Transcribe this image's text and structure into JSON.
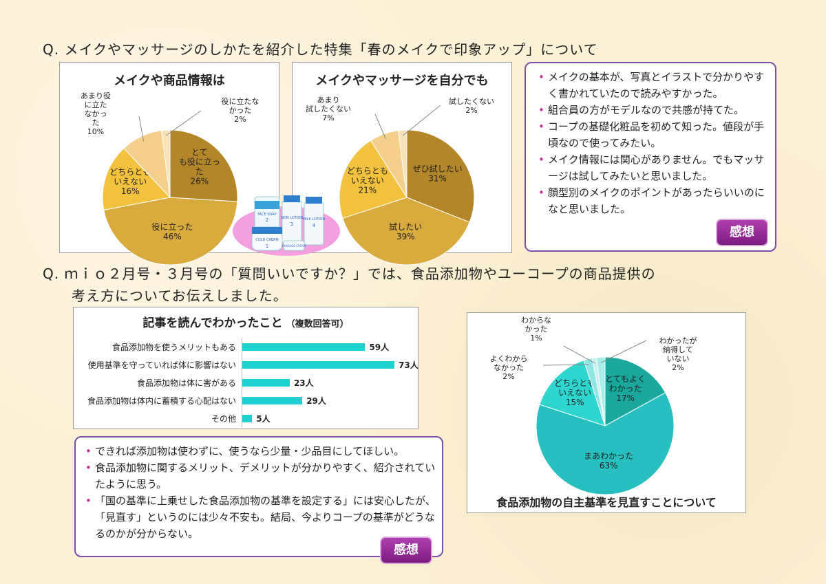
{
  "section1": {
    "question": "Q. メイクやマッサージのしかたを紹介した特集「春のメイクで印象アップ」について"
  },
  "section2": {
    "question_line1": "Q. ｍｉｏ２月号・３月号の「質問いいですか？」では、食品添加物やユーコープの商品提供の",
    "question_line2": "考え方についてお伝えしました。"
  },
  "comments1": {
    "items": [
      "メイクの基本が、写真とイラストで分かりやすく書かれていたので読みやすかった。",
      "組合員の方がモデルなので共感が持てた。",
      "コープの基礎化粧品を初めて知った。値段が手頃なので使ってみたい。",
      "メイク情報には関心がありません。でもマッサージは試してみたいと思いました。",
      "顔型別のメイクのポイントがあったらいいのになと思いました。"
    ],
    "badge": "感想"
  },
  "comments2": {
    "items": [
      "できれば添加物は使わずに、使うなら少量・少品目にしてほしい。",
      "食品添加物に関するメリット、デメリットが分かりやすく、紹介されていたように思う。",
      "「国の基準に上乗せした食品添加物の基準を設定する」には安心したが、「見直す」というのには少々不安も。結局、今よりコープの基準がどうなるのかが分からない。"
    ],
    "badge": "感想"
  },
  "product_image": {
    "labels": [
      "FACE SOAP",
      "SKIN LOTION",
      "COLD CREAM",
      "MILK LOTION",
      "MASSAGE CREAM"
    ],
    "numbers": [
      "2",
      "3",
      "1",
      "4"
    ]
  },
  "chart_data": [
    {
      "type": "pie",
      "title": "メイクや商品情報は",
      "slices": [
        {
          "label": "とても役に立った",
          "value": 26,
          "pct": "26%",
          "color": "#b3862a"
        },
        {
          "label": "役に立った",
          "value": 46,
          "pct": "46%",
          "color": "#d9aa3e"
        },
        {
          "label": "どちらともいえない",
          "value": 16,
          "pct": "16%",
          "color": "#f2c23e"
        },
        {
          "label": "あまり役に立たなかった",
          "value": 10,
          "pct": "10%",
          "color": "#f5d08c"
        },
        {
          "label": "役に立たなかった",
          "value": 2,
          "pct": "2%",
          "color": "#f8e2b8"
        }
      ]
    },
    {
      "type": "pie",
      "title": "メイクやマッサージを自分でも",
      "slices": [
        {
          "label": "ぜひ試したい",
          "value": 31,
          "pct": "31%",
          "color": "#b3862a"
        },
        {
          "label": "試したい",
          "value": 39,
          "pct": "39%",
          "color": "#d9aa3e"
        },
        {
          "label": "どちらともいえない",
          "value": 21,
          "pct": "21%",
          "color": "#f2c23e"
        },
        {
          "label": "あまり試したくない",
          "value": 7,
          "pct": "7%",
          "color": "#f5d08c"
        },
        {
          "label": "試したくない",
          "value": 2,
          "pct": "2%",
          "color": "#f8e2b8"
        }
      ]
    },
    {
      "type": "bar",
      "title": "記事を読んでわかったこと",
      "subtitle": "（複数回答可）",
      "categories": [
        "食品添加物を使うメリットもある",
        "使用基準を守っていれば体に影響はない",
        "食品添加物は体に害がある",
        "食品添加物は体内に蓄積する心配はない",
        "その他"
      ],
      "values": [
        59,
        73,
        23,
        29,
        5
      ],
      "value_labels": [
        "59人",
        "73人",
        "23人",
        "29人",
        "5人"
      ],
      "xlim": [
        0,
        73
      ],
      "color": "#1fd0d0"
    },
    {
      "type": "pie",
      "title": "食品添加物の自主基準を見直すことについて",
      "slices": [
        {
          "label": "とてもよくわかった",
          "value": 17,
          "pct": "17%",
          "color": "#1aa89c"
        },
        {
          "label": "まあわかった",
          "value": 63,
          "pct": "63%",
          "color": "#27bfbf"
        },
        {
          "label": "どちらともいえない",
          "value": 15,
          "pct": "15%",
          "color": "#2fd6d0"
        },
        {
          "label": "よくわからなかった",
          "value": 2,
          "pct": "2%",
          "color": "#8fe6e2"
        },
        {
          "label": "わからなかった",
          "value": 1,
          "pct": "1%",
          "color": "#c4f2ef"
        },
        {
          "label": "わかったが納得していない",
          "value": 2,
          "pct": "2%",
          "color": "#a8ece8"
        }
      ]
    }
  ]
}
